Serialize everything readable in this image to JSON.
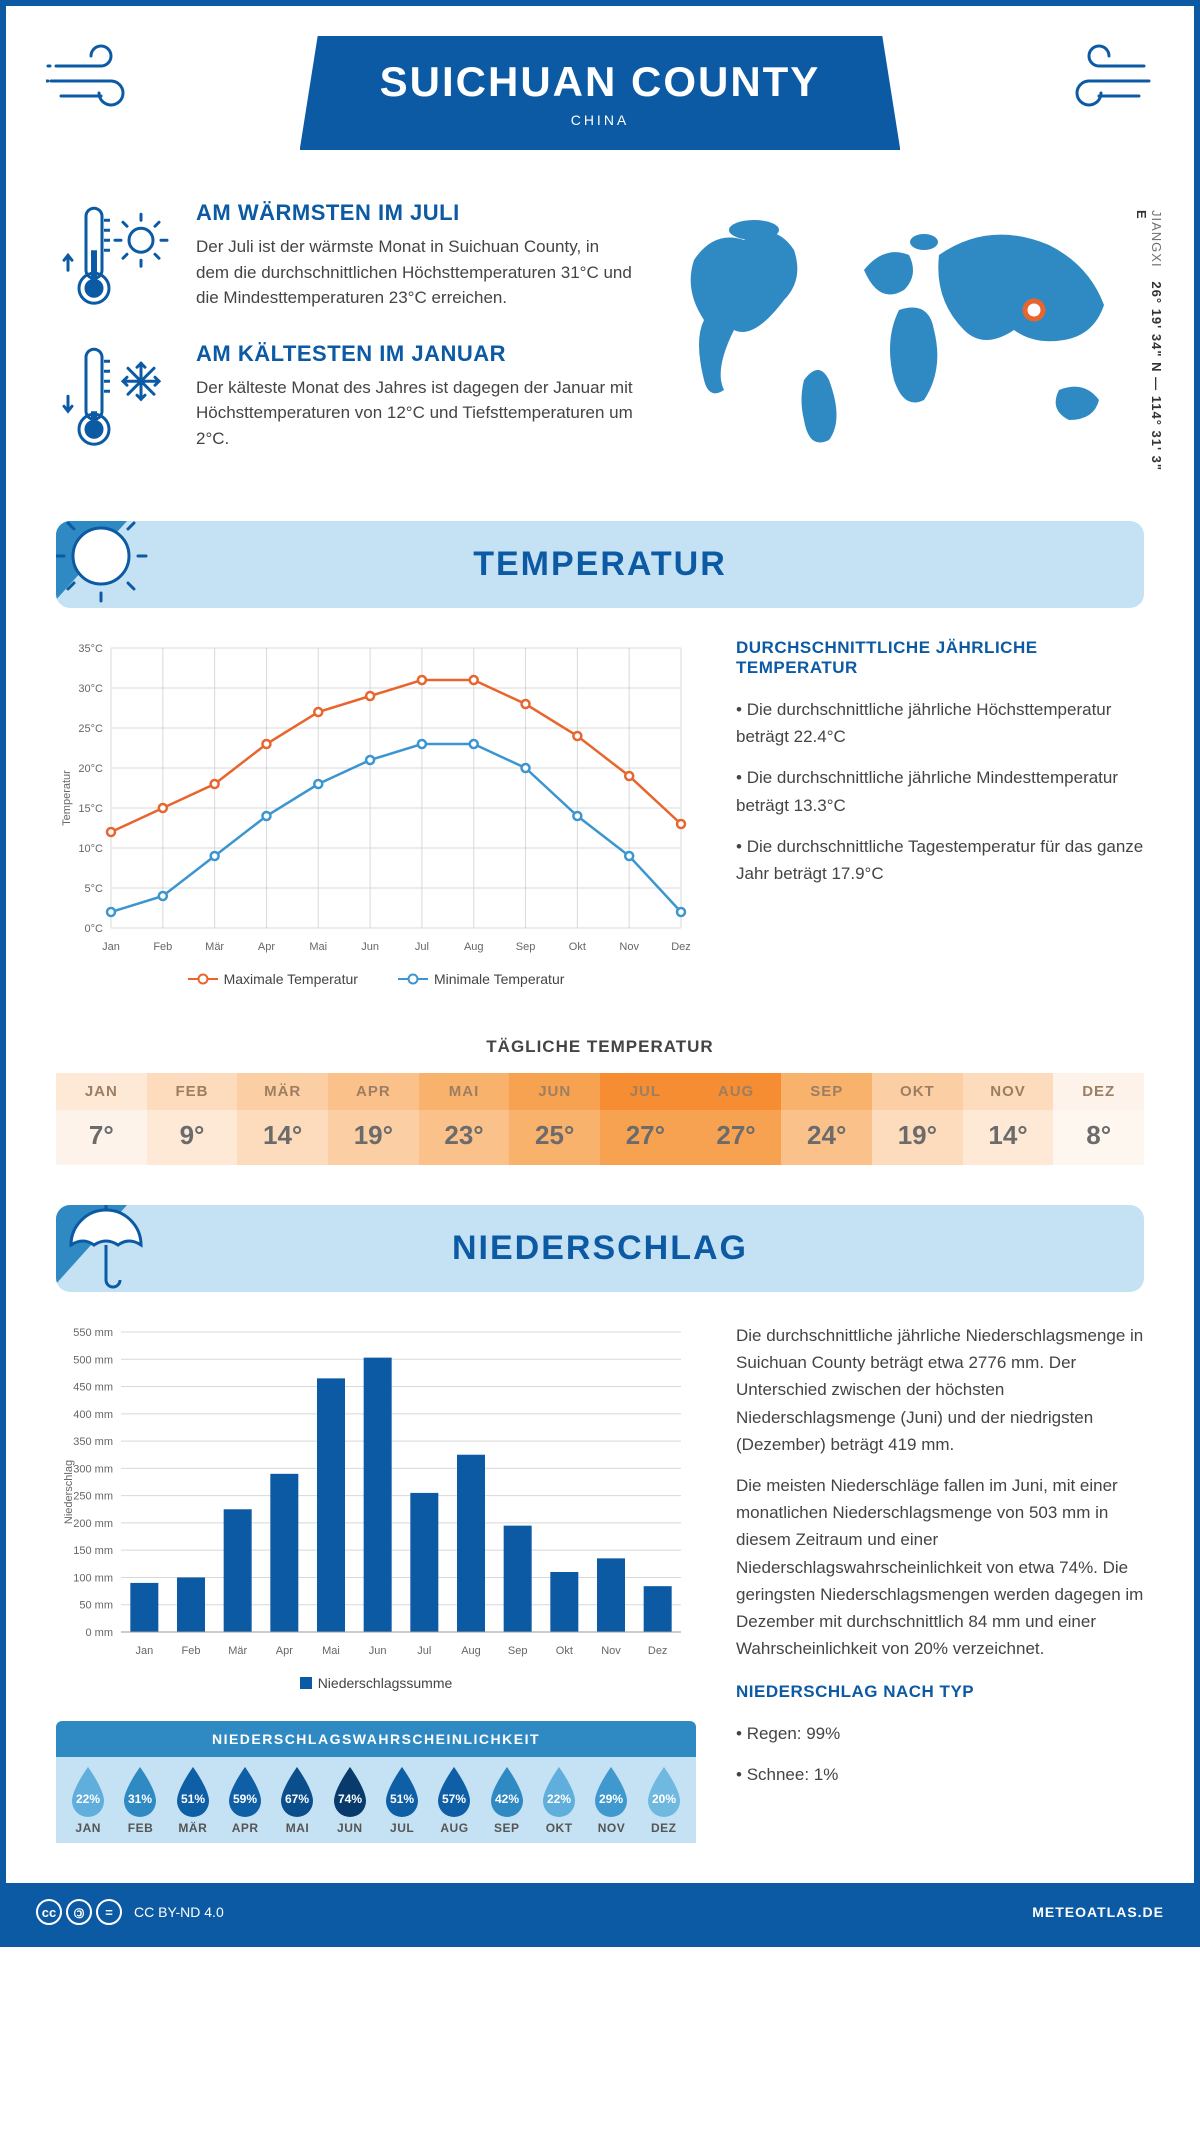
{
  "header": {
    "title": "SUICHUAN COUNTY",
    "subtitle": "CHINA"
  },
  "coords": {
    "lat": "26° 19' 34\" N",
    "lon": "114° 31' 3\" E",
    "region": "JIANGXI"
  },
  "intro": {
    "warm": {
      "title": "AM WÄRMSTEN IM JULI",
      "text": "Der Juli ist der wärmste Monat in Suichuan County, in dem die durchschnittlichen Höchsttemperaturen 31°C und die Mindesttemperaturen 23°C erreichen."
    },
    "cold": {
      "title": "AM KÄLTESTEN IM JANUAR",
      "text": "Der kälteste Monat des Jahres ist dagegen der Januar mit Höchsttemperaturen von 12°C und Tiefsttemperaturen um 2°C."
    }
  },
  "temperature": {
    "section_title": "TEMPERATUR",
    "annual_title": "DURCHSCHNITTLICHE JÄHRLICHE TEMPERATUR",
    "bullets": [
      "Die durchschnittliche jährliche Höchsttemperatur beträgt 22.4°C",
      "Die durchschnittliche jährliche Mindesttemperatur beträgt 13.3°C",
      "Die durchschnittliche Tagestemperatur für das ganze Jahr beträgt 17.9°C"
    ],
    "chart": {
      "type": "line",
      "months": [
        "Jan",
        "Feb",
        "Mär",
        "Apr",
        "Mai",
        "Jun",
        "Jul",
        "Aug",
        "Sep",
        "Okt",
        "Nov",
        "Dez"
      ],
      "max_series": {
        "label": "Maximale Temperatur",
        "color": "#e8652e",
        "values": [
          12,
          15,
          18,
          23,
          27,
          29,
          31,
          31,
          28,
          24,
          19,
          13
        ]
      },
      "min_series": {
        "label": "Minimale Temperatur",
        "color": "#3a95d1",
        "values": [
          2,
          4,
          9,
          14,
          18,
          21,
          23,
          23,
          20,
          14,
          9,
          2
        ]
      },
      "ylabel": "Temperatur",
      "ylim": [
        0,
        35
      ],
      "ytick_step": 5,
      "grid_color": "#d8d8d8",
      "background": "#ffffff",
      "label_fontsize": 11
    },
    "daily_title": "TÄGLICHE TEMPERATUR",
    "daily_table": {
      "months": [
        "JAN",
        "FEB",
        "MÄR",
        "APR",
        "MAI",
        "JUN",
        "JUL",
        "AUG",
        "SEP",
        "OKT",
        "NOV",
        "DEZ"
      ],
      "values": [
        "7°",
        "9°",
        "14°",
        "19°",
        "23°",
        "25°",
        "27°",
        "27°",
        "24°",
        "19°",
        "14°",
        "8°"
      ],
      "header_colors": [
        "#fde9d6",
        "#fcdcbd",
        "#fbcfa3",
        "#fac28a",
        "#f9b26b",
        "#f7a251",
        "#f68d32",
        "#f68d32",
        "#f9b26b",
        "#fbcfa3",
        "#fcdcbd",
        "#fef3ea"
      ],
      "body_colors": [
        "#fef3ea",
        "#fde9d6",
        "#fcdcbd",
        "#fbcfa3",
        "#fac28a",
        "#f9b26b",
        "#f7a251",
        "#f7a251",
        "#fac28a",
        "#fcdcbd",
        "#fde9d6",
        "#fef7f0"
      ],
      "text_month_color": "#9c7e63",
      "text_val_color": "#6b6b6b"
    }
  },
  "precipitation": {
    "section_title": "NIEDERSCHLAG",
    "chart": {
      "type": "bar",
      "months": [
        "Jan",
        "Feb",
        "Mär",
        "Apr",
        "Mai",
        "Jun",
        "Jul",
        "Aug",
        "Sep",
        "Okt",
        "Nov",
        "Dez"
      ],
      "values": [
        90,
        100,
        225,
        290,
        465,
        503,
        255,
        325,
        195,
        110,
        135,
        84
      ],
      "bar_color": "#0b5aa3",
      "ylabel": "Niederschlag",
      "ylim": [
        0,
        550
      ],
      "ytick_step": 50,
      "grid_color": "#d8d8d8",
      "legend_label": "Niederschlagssumme",
      "label_fontsize": 11
    },
    "text1": "Die durchschnittliche jährliche Niederschlagsmenge in Suichuan County beträgt etwa 2776 mm. Der Unterschied zwischen der höchsten Niederschlagsmenge (Juni) und der niedrigsten (Dezember) beträgt 419 mm.",
    "text2": "Die meisten Niederschläge fallen im Juni, mit einer monatlichen Niederschlagsmenge von 503 mm in diesem Zeitraum und einer Niederschlagswahrscheinlichkeit von etwa 74%. Die geringsten Niederschlagsmengen werden dagegen im Dezember mit durchschnittlich 84 mm und einer Wahrscheinlichkeit von 20% verzeichnet.",
    "type_title": "NIEDERSCHLAG NACH TYP",
    "type_bullets": [
      "Regen: 99%",
      "Schnee: 1%"
    ],
    "probability": {
      "title": "NIEDERSCHLAGSWAHRSCHEINLICHKEIT",
      "months": [
        "JAN",
        "FEB",
        "MÄR",
        "APR",
        "MAI",
        "JUN",
        "JUL",
        "AUG",
        "SEP",
        "OKT",
        "NOV",
        "DEZ"
      ],
      "values": [
        "22%",
        "31%",
        "51%",
        "59%",
        "67%",
        "74%",
        "51%",
        "57%",
        "42%",
        "22%",
        "29%",
        "20%"
      ],
      "drop_colors": [
        "#5faedb",
        "#2f8ac4",
        "#0e5fa6",
        "#0e5fa6",
        "#0b4e8c",
        "#083b6b",
        "#0e5fa6",
        "#0e5fa6",
        "#2f8ac4",
        "#5faedb",
        "#3f99cf",
        "#6fb8e0"
      ]
    }
  },
  "footer": {
    "license": "CC BY-ND 4.0",
    "site": "METEOATLAS.DE"
  },
  "colors": {
    "brand": "#0b5aa3",
    "light_blue": "#c5e2f5",
    "map_blue": "#2f8ac4"
  }
}
